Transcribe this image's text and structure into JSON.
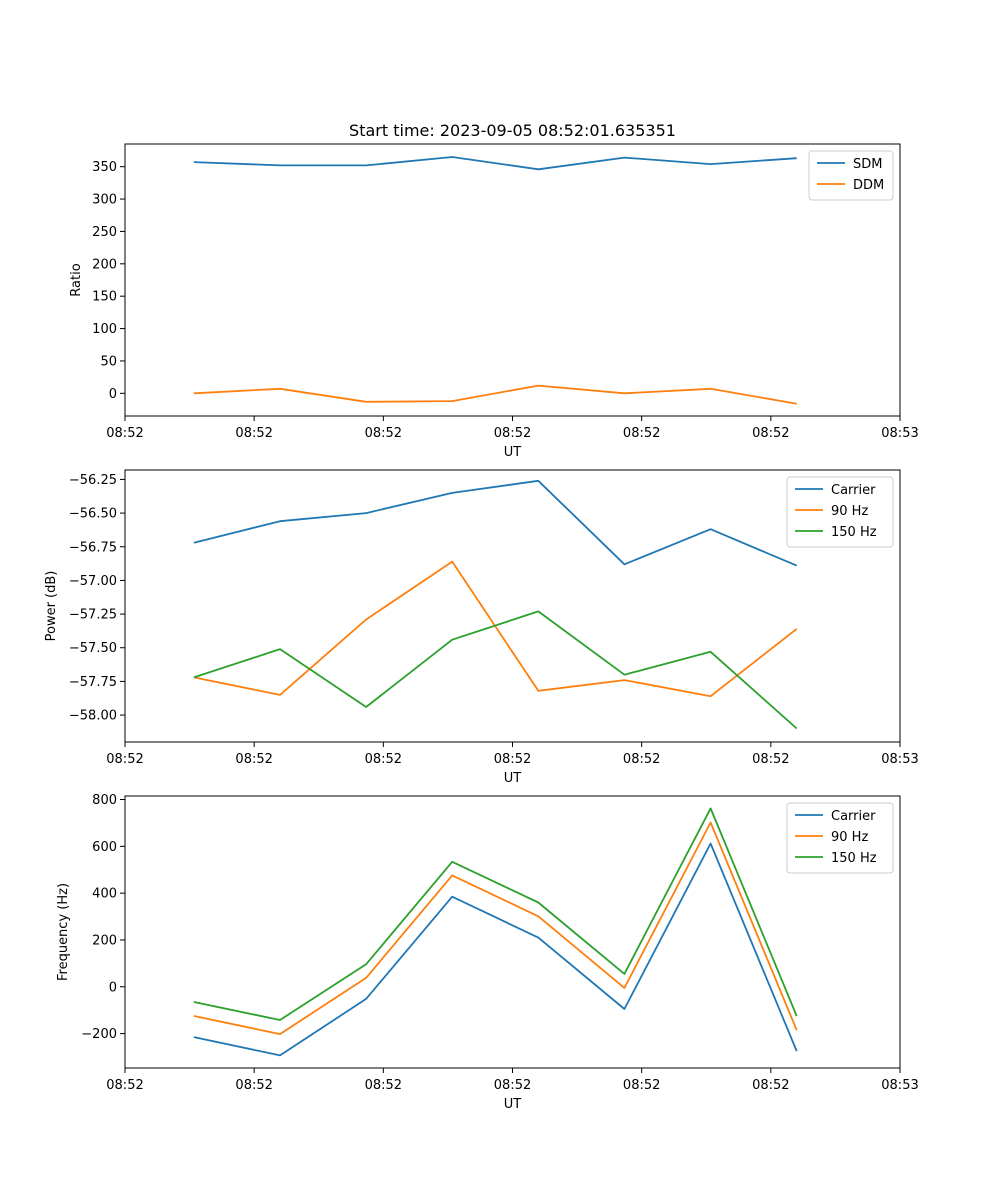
{
  "title": "Start time: 2023-09-05 08:52:01.635351",
  "colors": {
    "blue": "#1f77b4",
    "orange": "#ff7f0e",
    "green": "#2ca02c"
  },
  "chart_data": [
    {
      "type": "line",
      "xlabel": "UT",
      "ylabel": "Ratio",
      "x": [
        1,
        2,
        3,
        4,
        5,
        6,
        7,
        8
      ],
      "xlim": [
        0.2,
        9.2
      ],
      "xticks": [
        0.2,
        1.7,
        3.2,
        4.7,
        6.2,
        7.7,
        9.2
      ],
      "xtick_labels": [
        "08:52",
        "08:52",
        "08:52",
        "08:52",
        "08:52",
        "08:52",
        "08:53"
      ],
      "ylim": [
        -35,
        385
      ],
      "yticks": [
        0,
        50,
        100,
        150,
        200,
        250,
        300,
        350
      ],
      "ytick_labels": [
        "0",
        "50",
        "100",
        "150",
        "200",
        "250",
        "300",
        "350"
      ],
      "legend_position": "top-right",
      "series": [
        {
          "name": "SDM",
          "color": "#1f77b4",
          "values": [
            357,
            352,
            352,
            365,
            346,
            364,
            354,
            363
          ]
        },
        {
          "name": "DDM",
          "color": "#ff7f0e",
          "values": [
            0,
            7,
            -13,
            -12,
            12,
            0,
            7,
            -16
          ]
        }
      ]
    },
    {
      "type": "line",
      "xlabel": "UT",
      "ylabel": "Power (dB)",
      "x": [
        1,
        2,
        3,
        4,
        5,
        6,
        7,
        8
      ],
      "xlim": [
        0.2,
        9.2
      ],
      "xticks": [
        0.2,
        1.7,
        3.2,
        4.7,
        6.2,
        7.7,
        9.2
      ],
      "xtick_labels": [
        "08:52",
        "08:52",
        "08:52",
        "08:52",
        "08:52",
        "08:52",
        "08:53"
      ],
      "ylim": [
        -58.2,
        -56.18
      ],
      "yticks": [
        -58.0,
        -57.75,
        -57.5,
        -57.25,
        -57.0,
        -56.75,
        -56.5,
        -56.25
      ],
      "ytick_labels": [
        "−58.00",
        "−57.75",
        "−57.50",
        "−57.25",
        "−57.00",
        "−56.75",
        "−56.50",
        "−56.25"
      ],
      "legend_position": "top-right",
      "series": [
        {
          "name": "Carrier",
          "color": "#1f77b4",
          "values": [
            -56.72,
            -56.56,
            -56.5,
            -56.35,
            -56.26,
            -56.88,
            -56.62,
            -56.89
          ]
        },
        {
          "name": "90 Hz",
          "color": "#ff7f0e",
          "values": [
            -57.72,
            -57.85,
            -57.29,
            -56.86,
            -57.82,
            -57.74,
            -57.86,
            -57.36
          ]
        },
        {
          "name": "150 Hz",
          "color": "#2ca02c",
          "values": [
            -57.72,
            -57.51,
            -57.94,
            -57.44,
            -57.23,
            -57.7,
            -57.53,
            -58.1
          ]
        }
      ]
    },
    {
      "type": "line",
      "xlabel": "UT",
      "ylabel": "Frequency (Hz)",
      "x": [
        1,
        2,
        3,
        4,
        5,
        6,
        7,
        8
      ],
      "xlim": [
        0.2,
        9.2
      ],
      "xticks": [
        0.2,
        1.7,
        3.2,
        4.7,
        6.2,
        7.7,
        9.2
      ],
      "xtick_labels": [
        "08:52",
        "08:52",
        "08:52",
        "08:52",
        "08:52",
        "08:52",
        "08:53"
      ],
      "ylim": [
        -347,
        815
      ],
      "yticks": [
        -200,
        0,
        200,
        400,
        600,
        800
      ],
      "ytick_labels": [
        "−200",
        "0",
        "200",
        "400",
        "600",
        "800"
      ],
      "legend_position": "top-right",
      "series": [
        {
          "name": "Carrier",
          "color": "#1f77b4",
          "values": [
            -215,
            -293,
            -52,
            385,
            210,
            -95,
            612,
            -275
          ]
        },
        {
          "name": "90 Hz",
          "color": "#ff7f0e",
          "values": [
            -125,
            -202,
            38,
            476,
            301,
            -5,
            702,
            -185
          ]
        },
        {
          "name": "150 Hz",
          "color": "#2ca02c",
          "values": [
            -65,
            -142,
            96,
            534,
            360,
            55,
            762,
            -125
          ]
        }
      ]
    }
  ]
}
